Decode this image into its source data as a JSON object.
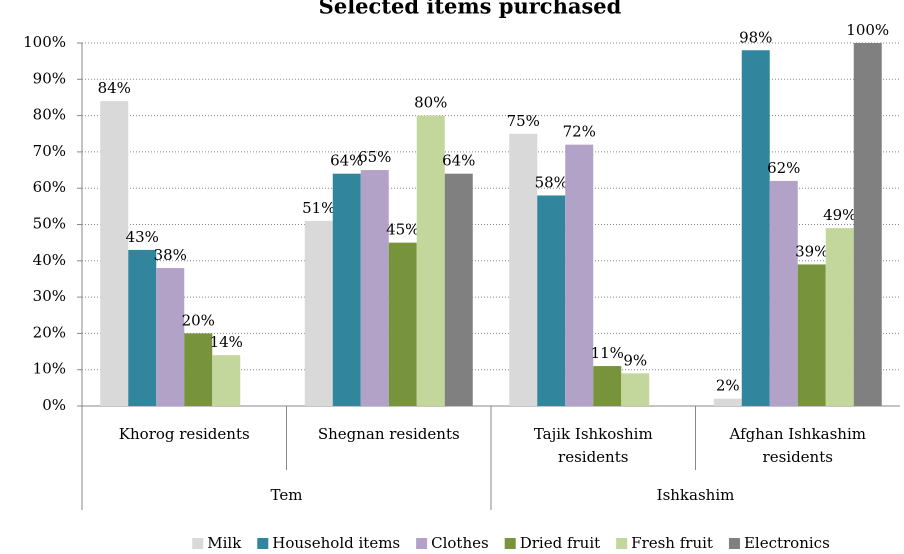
{
  "chart_data": {
    "type": "bar",
    "title": "Selected items purchased",
    "categories": [
      "Khorog residents",
      "Shegnan residents",
      "Tajik Ishkoshim residents",
      "Afghan Ishkashim residents"
    ],
    "groups": [
      {
        "name": "Tem",
        "count": 2
      },
      {
        "name": "Ishkashim",
        "count": 2
      }
    ],
    "series": [
      {
        "name": "Milk",
        "color": "#d9d9d9",
        "values": [
          84,
          51,
          75,
          2
        ],
        "value_labels": [
          "84%",
          "51%",
          "75%",
          "2%"
        ]
      },
      {
        "name": "Household items",
        "color": "#31859c",
        "values": [
          43,
          64,
          58,
          98
        ],
        "value_labels": [
          "43%",
          "64%",
          "58%",
          "98%"
        ]
      },
      {
        "name": "Clothes",
        "color": "#b3a2c7",
        "values": [
          38,
          65,
          72,
          62
        ],
        "value_labels": [
          "38%",
          "65%",
          "72%",
          "62%"
        ]
      },
      {
        "name": "Dried fruit",
        "color": "#77933c",
        "values": [
          20,
          45,
          11,
          39
        ],
        "value_labels": [
          "20%",
          "45%",
          "11%",
          "39%"
        ]
      },
      {
        "name": "Fresh fruit",
        "color": "#c3d69b",
        "values": [
          14,
          80,
          9,
          49
        ],
        "value_labels": [
          "14%",
          "80%",
          "9%",
          "49%"
        ]
      },
      {
        "name": "Electronics",
        "color": "#808080",
        "values": [
          null,
          64,
          null,
          100
        ],
        "value_labels": [
          null,
          "64%",
          null,
          "100%"
        ]
      }
    ],
    "ylim": [
      0,
      100
    ],
    "yticks": [
      {
        "value": 0,
        "label": "0%"
      },
      {
        "value": 10,
        "label": "10%"
      },
      {
        "value": 20,
        "label": "20%"
      },
      {
        "value": 30,
        "label": "30%"
      },
      {
        "value": 40,
        "label": "40%"
      },
      {
        "value": 50,
        "label": "50%"
      },
      {
        "value": 60,
        "label": "60%"
      },
      {
        "value": 70,
        "label": "70%"
      },
      {
        "value": 80,
        "label": "80%"
      },
      {
        "value": 90,
        "label": "90%"
      },
      {
        "value": 100,
        "label": "100%"
      }
    ],
    "grid": true,
    "legend": "bottom"
  }
}
